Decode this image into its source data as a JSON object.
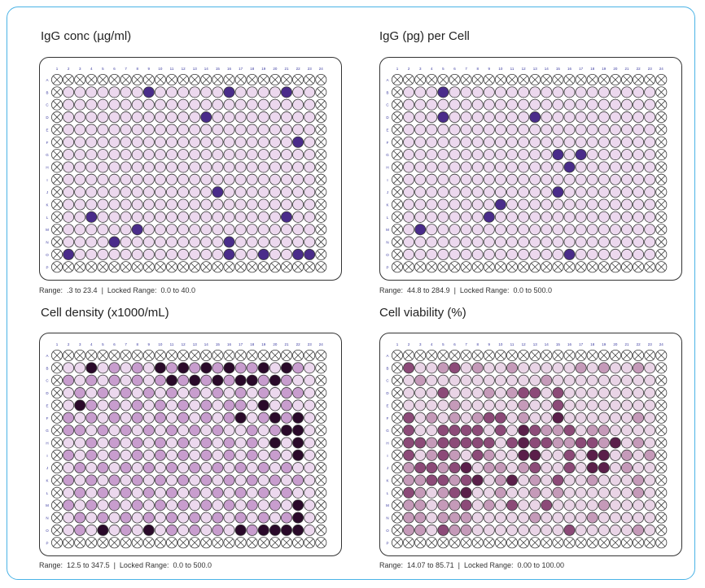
{
  "columns": [
    "1",
    "2",
    "3",
    "4",
    "5",
    "6",
    "7",
    "8",
    "9",
    "10",
    "11",
    "12",
    "13",
    "14",
    "15",
    "16",
    "17",
    "18",
    "19",
    "20",
    "21",
    "22",
    "23",
    "24"
  ],
  "rows": [
    "A",
    "B",
    "C",
    "D",
    "E",
    "F",
    "G",
    "H",
    "I",
    "J",
    "K",
    "L",
    "M",
    "N",
    "O",
    "P"
  ],
  "colors": {
    "frame": "#4ab3e6",
    "empty": "#ffffff",
    "low": "#ecd8ee",
    "medium": "#c89dce",
    "high": "#9a5aa6",
    "highlight": "#4a2c8a",
    "max": "#2a0a2a",
    "plum_low": "#e9d4e6",
    "plum_mid": "#c59ab9",
    "plum_high": "#8c4a78",
    "plum_max": "#5a1f4a",
    "well_border": "#3a3a3a",
    "label": "#3a3aa0"
  },
  "panels": [
    {
      "title": "IgG conc (µg/ml)",
      "range_label": "Range:",
      "range_value": ".3 to 23.4",
      "locked_label": "Locked Range:",
      "locked_value": "0.0 to 40.0",
      "grid": [
        "XXXXXXXXXXXXXXXXXXXXXXXX",
        "XLLLLLLLHLLLLLLHLLLLHLLX",
        "XLLLLLLLLLLLLLLLLLLLLLLX",
        "XLLLLLLLLLLLLHLLLLLLLLLX",
        "XLLLLLLLLLLLLLLLLLLLLLLX",
        "XLLLLLLLLLLLLLLLLLLLLHLX",
        "XLLLLLLLLLLLLLLLLLLLLLLX",
        "XLLLLLLLLLLLLLLLLLLLLLLX",
        "XLLLLLLLLLLLLLLLLLLLLLLX",
        "XLLLLLLLLLLLLLHLLLLLLLLX",
        "XLLLLLLLLLLLLLLLLLLLLLLX",
        "XLLHLLLLLLLLLLLLLLLLHLLX",
        "XLLLLLLHLLLLLLLLLLLLLLLX",
        "XLLLLHLLLLLLLLLHLLLLLLLX",
        "XHLLLLLLLLLLLLLHLLHLLHHX",
        "XXXXXXXXXXXXXXXXXXXXXXXX"
      ]
    },
    {
      "title": "IgG (pg) per Cell",
      "range_label": "Range:",
      "range_value": "44.8 to 284.9",
      "locked_label": "Locked Range:",
      "locked_value": "0.0 to 500.0",
      "grid": [
        "XXXXXXXXXXXXXXXXXXXXXXXX",
        "XLLLHLLLLLLLLLLLLLLLLLLX",
        "XLLLLLLLLLLLLLLLLLLLLLLX",
        "XLLLHLLLLLLLHLLLLLLLLLLX",
        "XLLLLLLLLLLLLLLLLLLLLLLX",
        "XLLLLLLLLLLLLLLLLLLLLLLX",
        "XLLLLLLLLLLLLLHLHLLLLLLX",
        "XLLLLLLLLLLLLLLHLLLLLLLX",
        "XLLLLLLLLLLLLLLLLLLLLLLX",
        "XLLLLLLLLLLLLLHLLLLLLLLX",
        "XLLLLLLLLHLLLLLLLLLLLLLX",
        "XLLLLLLLHLLLLLLLLLLLLLLX",
        "XLHLLLLLLLLLLLLLLLLLLLLX",
        "XLLLLLLLLLLLLLLLLLLLLLLX",
        "XLLLLLLLLLLLLLLHLLLLLLLX",
        "XXXXXXXXXXXXXXXXXXXXXXXX"
      ]
    },
    {
      "title": "Cell density (x1000/mL)",
      "range_label": "Range:",
      "range_value": "12.5 to 347.5",
      "locked_label": "Locked Range:",
      "locked_value": "0.0 to 500.0",
      "grid": [
        "XXXXXXXXXXXXXXXXXXXXXXXX",
        "XLLDLMLMLDMDMDMDMMDLDMLX",
        "XMLMLMLMLMDMDMDMDDMDMLLX",
        "XLMLMLMLMLMLMLMLMLMLMMLX",
        "XLDMLMLMLMLMLMLMMLDLMLLX",
        "XMLMLMLMLMLMLMLMDLMDMDLX",
        "XMMLMLMLMLMLMLMLLMLMDDLX",
        "XLLMLMLMLMLMLMLMLMLDLDLX",
        "XMLMLMLMLMLMLMLMLMLMLDLX",
        "XLMLMLMLMLMLMLMLMLMLMLLX",
        "XMLMLMLMLMLMLMLMLMLMLMLX",
        "XLMLMLMLMLMLMLMLMLMLMLLX",
        "XMLMLMLMLMLMLMLMLMLMLDLX",
        "XLMLMLMLMLMLMLMLMLMLMDLX",
        "XLMLDLMLDLMLMLMLDMDDDDLX",
        "XXXXXXXXXXXXXXXXXXXXXXXX"
      ]
    },
    {
      "title": "Cell viability (%)",
      "range_label": "Range:",
      "range_value": "14.07 to 85.71",
      "locked_label": "Locked Range:",
      "locked_value": "0.00 to 100.00",
      "grid": [
        "XXXXXXXXXXXXXXXXXXXXXXXX",
        "XHLLMHLMLLMLLLLLMLMLLMLX",
        "XLMLLLLLLLLLLMLLLLLLLLLX",
        "XLLLHLLLMLMHHLHLLLLLLLLX",
        "XLLLLMLLLLLMLLHLLLLLLLLX",
        "XHLMLMLMHHLMLLDLLLLLLMLX",
        "XHLLHHHHLHLDHMMHLMMLLLLX",
        "XHHMHHHHHLHDHHMMHHMDLMLX",
        "XHLMHMLHMLLDDLLHLDDLMLMX",
        "XMHHMHDLMMLMHLLHLDDLMLLX",
        "XMMHHMHDLMDLMLHLLMLLLMLX",
        "XHMLMHDLLMLLMLMLLLLLLMLX",
        "XMMLMMHLMLHLLHLLLLMLLLLX",
        "XMMLMMMLLLLLMLLLLMLLLLLX",
        "XMMLHMMLLLLLLLLHLLLLLMLX",
        "XXXXXXXXXXXXXXXXXXXXXXXX"
      ]
    }
  ]
}
